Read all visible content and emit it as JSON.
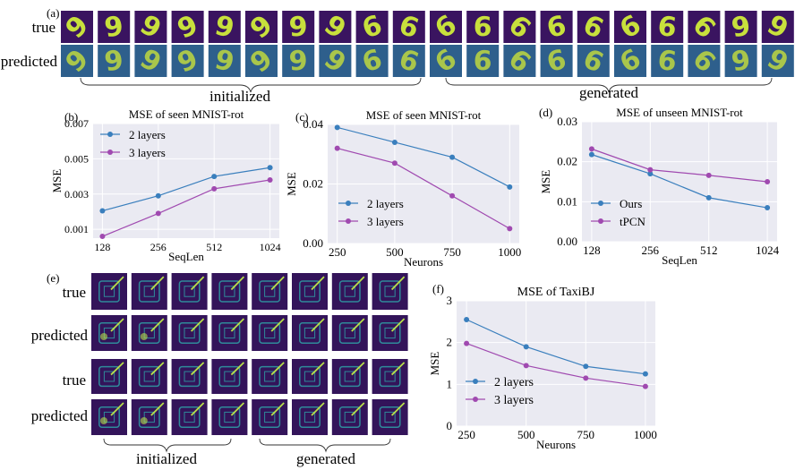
{
  "panel_letters": {
    "a": "(a)",
    "b": "(b)",
    "c": "(c)",
    "d": "(d)",
    "e": "(e)",
    "f": "(f)"
  },
  "panel_a": {
    "row_labels": [
      "true",
      "predicted"
    ],
    "group_labels": [
      "initialized",
      "generated"
    ],
    "digits_initialized": [
      "9",
      "9",
      "9",
      "9",
      "9",
      "9",
      "9",
      "9",
      "6",
      "6"
    ],
    "digits_generated": [
      "6",
      "6",
      "6",
      "6",
      "6",
      "6",
      "6",
      "6",
      "9",
      "9"
    ],
    "colors": {
      "background": "#3a1460",
      "stroke": "#c8e03c",
      "predicted_tint": "#2e5f8c"
    }
  },
  "panel_e": {
    "row_labels": [
      "true",
      "predicted",
      "true",
      "predicted"
    ],
    "group_labels": [
      "initialized",
      "generated"
    ],
    "colors": {
      "background": "#33145a",
      "grid": "#2f8a9a",
      "hot": "#b8e04a"
    }
  },
  "series_colors": {
    "first": "#3a7fbd",
    "second": "#a04ab0"
  },
  "chart_data": [
    {
      "id": "b",
      "type": "line",
      "title": "MSE of seen MNIST-rot",
      "xlabel": "SeqLen",
      "ylabel": "MSE",
      "categories": [
        "128",
        "256",
        "512",
        "1024"
      ],
      "ylim": [
        0.0005,
        0.007
      ],
      "yticks": [
        "0.001",
        "0.003",
        "0.005",
        "0.007"
      ],
      "ytick_values": [
        0.001,
        0.003,
        0.005,
        0.007
      ],
      "legend_position": "top-left",
      "grid": true,
      "series": [
        {
          "name": "2 layers",
          "values": [
            0.00205,
            0.0029,
            0.004,
            0.0045
          ]
        },
        {
          "name": "3 layers",
          "values": [
            0.0006,
            0.0019,
            0.0033,
            0.0038
          ]
        }
      ]
    },
    {
      "id": "c",
      "type": "line",
      "title": "MSE of seen MNIST-rot",
      "xlabel": "Neurons",
      "ylabel": "MSE",
      "categories": [
        "250",
        "500",
        "750",
        "1000"
      ],
      "ylim": [
        0,
        0.04
      ],
      "yticks": [
        "0.00",
        "0.02",
        "0.04"
      ],
      "ytick_values": [
        0,
        0.02,
        0.04
      ],
      "legend_position": "bottom-left",
      "grid": true,
      "series": [
        {
          "name": "2 layers",
          "values": [
            0.039,
            0.034,
            0.029,
            0.019
          ]
        },
        {
          "name": "3 layers",
          "values": [
            0.032,
            0.027,
            0.016,
            0.005
          ]
        }
      ]
    },
    {
      "id": "d",
      "type": "line",
      "title": "MSE of unseen MNIST-rot",
      "xlabel": "SeqLen",
      "ylabel": "MSE",
      "categories": [
        "128",
        "256",
        "512",
        "1024"
      ],
      "ylim": [
        0,
        0.03
      ],
      "yticks": [
        "0.00",
        "0.01",
        "0.02",
        "0.03"
      ],
      "ytick_values": [
        0,
        0.01,
        0.02,
        0.03
      ],
      "legend_position": "bottom-left",
      "grid": true,
      "series": [
        {
          "name": "Ours",
          "values": [
            0.0218,
            0.017,
            0.011,
            0.0085
          ]
        },
        {
          "name": "tPCN",
          "values": [
            0.0232,
            0.018,
            0.0166,
            0.015
          ]
        }
      ]
    },
    {
      "id": "f",
      "type": "line",
      "title": "MSE of TaxiBJ",
      "xlabel": "Neurons",
      "ylabel": "MSE",
      "categories": [
        "250",
        "500",
        "750",
        "1000"
      ],
      "ylim": [
        0,
        3
      ],
      "yticks": [
        "0",
        "1",
        "2",
        "3"
      ],
      "ytick_values": [
        0,
        1,
        2,
        3
      ],
      "legend_position": "bottom-left",
      "grid": true,
      "series": [
        {
          "name": "2 layers",
          "values": [
            2.55,
            1.9,
            1.43,
            1.25
          ]
        },
        {
          "name": "3 layers",
          "values": [
            1.98,
            1.45,
            1.15,
            0.95
          ]
        }
      ]
    }
  ]
}
